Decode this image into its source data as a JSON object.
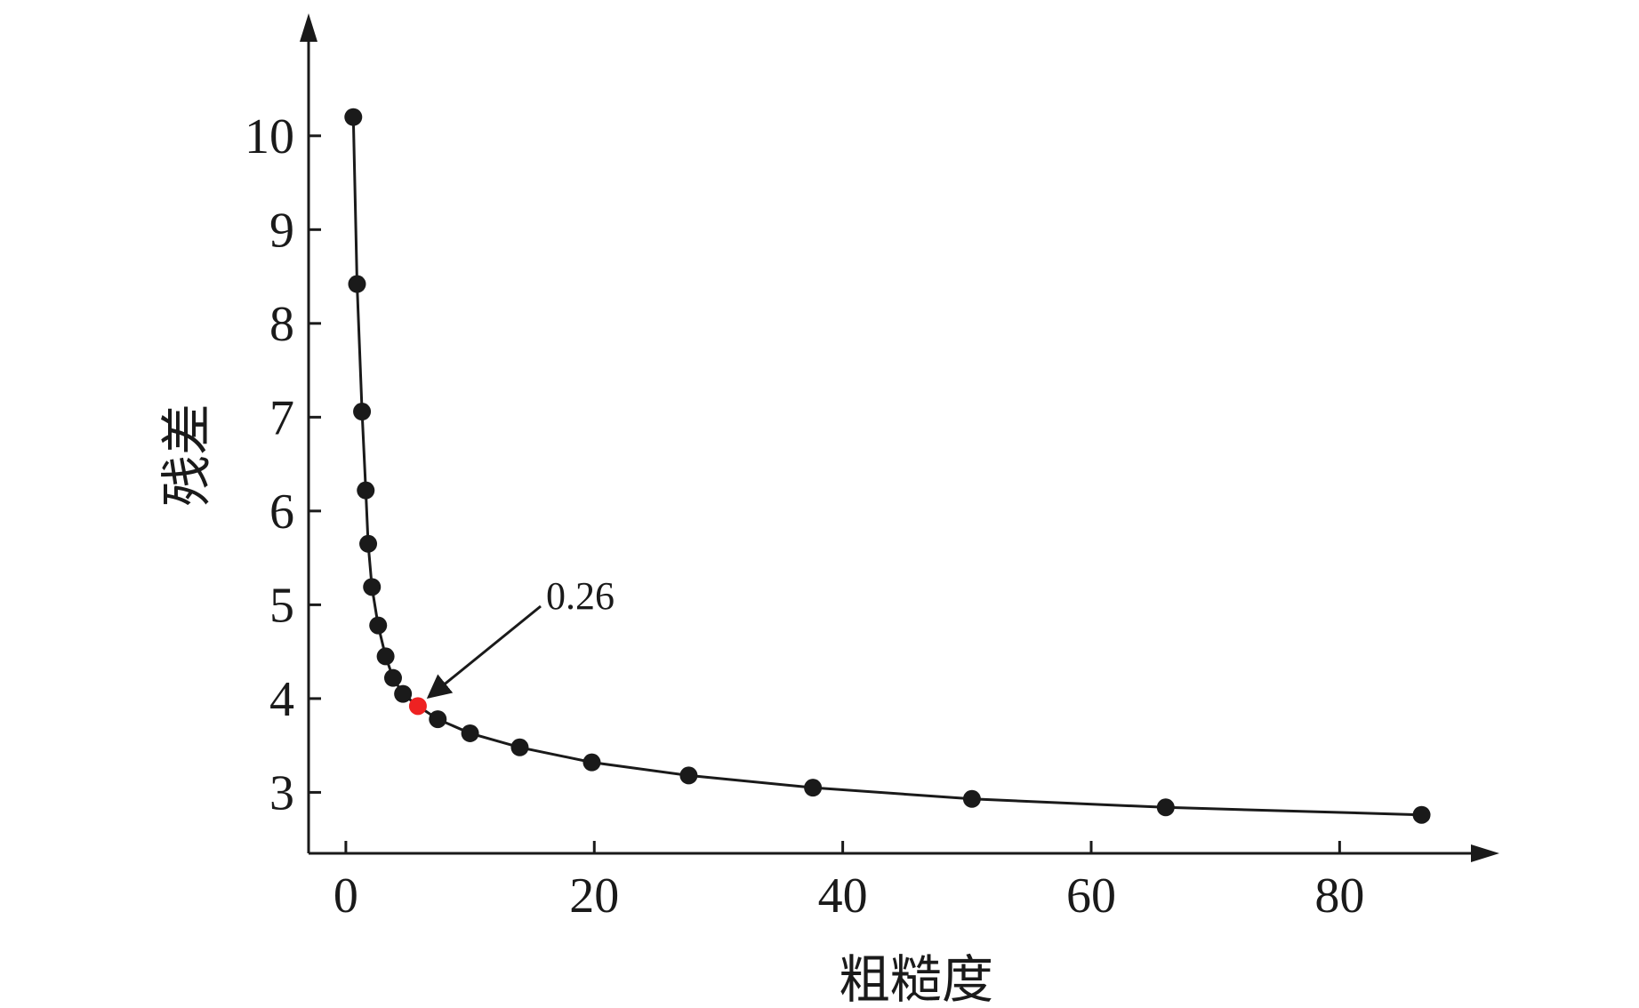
{
  "chart_data": {
    "type": "line",
    "xlabel": "粗糙度",
    "ylabel": "残差",
    "xlim": [
      -3,
      91
    ],
    "ylim": [
      2.35,
      11.05
    ],
    "x_ticks": [
      0,
      20,
      40,
      60,
      80
    ],
    "y_ticks": [
      3,
      4,
      5,
      6,
      7,
      8,
      9,
      10
    ],
    "grid": false,
    "line_color": "#1a1a1a",
    "marker_color": "#1a1a1a",
    "highlight_color": "#ee2222",
    "series": [
      {
        "points": [
          [
            0.6,
            10.2
          ],
          [
            0.9,
            8.42
          ],
          [
            1.3,
            7.06
          ],
          [
            1.6,
            6.22
          ],
          [
            1.8,
            5.65
          ],
          [
            2.1,
            5.19
          ],
          [
            2.6,
            4.78
          ],
          [
            3.2,
            4.45
          ],
          [
            3.8,
            4.22
          ],
          [
            4.6,
            4.05
          ],
          [
            5.8,
            3.92
          ],
          [
            7.4,
            3.78
          ],
          [
            10.0,
            3.63
          ],
          [
            14.0,
            3.48
          ],
          [
            19.8,
            3.32
          ],
          [
            27.6,
            3.18
          ],
          [
            37.6,
            3.05
          ],
          [
            50.4,
            2.93
          ],
          [
            66.0,
            2.84
          ],
          [
            86.6,
            2.76
          ]
        ]
      }
    ],
    "highlight": {
      "index": 10,
      "label": "0.26"
    }
  }
}
